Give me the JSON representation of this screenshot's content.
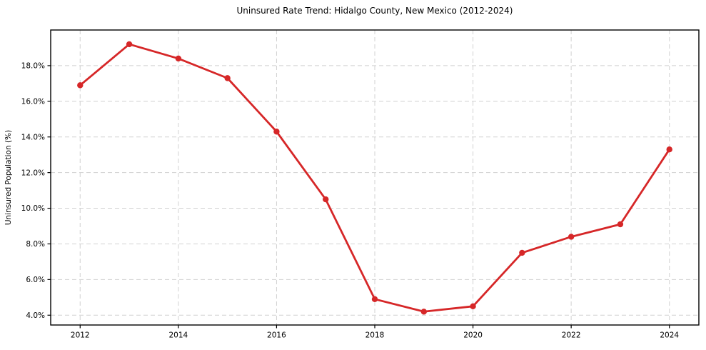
{
  "figure": {
    "background": "#ffffff"
  },
  "chart_data": {
    "type": "line",
    "title": "Uninsured Rate Trend: Hidalgo County, New Mexico (2012-2024)",
    "xlabel": "",
    "ylabel": "Uninsured Population (%)",
    "x": [
      2012,
      2013,
      2014,
      2015,
      2016,
      2017,
      2018,
      2019,
      2020,
      2021,
      2022,
      2023,
      2024
    ],
    "series": [
      {
        "name": "Uninsured Rate",
        "values": [
          16.9,
          19.2,
          18.4,
          17.3,
          14.3,
          10.5,
          4.9,
          4.2,
          4.5,
          7.5,
          8.4,
          9.1,
          13.3
        ],
        "color": "#d62728",
        "marker": "circle",
        "line_width": 2.8,
        "marker_radius": 4.2
      }
    ],
    "xlim": [
      2011.4,
      2024.6
    ],
    "ylim": [
      3.45,
      20.0
    ],
    "x_ticks": [
      {
        "value": 2012,
        "label": "2012"
      },
      {
        "value": 2014,
        "label": "2014"
      },
      {
        "value": 2016,
        "label": "2016"
      },
      {
        "value": 2018,
        "label": "2018"
      },
      {
        "value": 2020,
        "label": "2020"
      },
      {
        "value": 2022,
        "label": "2022"
      },
      {
        "value": 2024,
        "label": "2024"
      }
    ],
    "y_ticks": [
      {
        "value": 4,
        "label": "4.0%"
      },
      {
        "value": 6,
        "label": "6.0%"
      },
      {
        "value": 8,
        "label": "8.0%"
      },
      {
        "value": 10,
        "label": "10.0%"
      },
      {
        "value": 12,
        "label": "12.0%"
      },
      {
        "value": 14,
        "label": "14.0%"
      },
      {
        "value": 16,
        "label": "16.0%"
      },
      {
        "value": 18,
        "label": "18.0%"
      }
    ],
    "grid": {
      "show": true,
      "style": "dashed",
      "color": "#c9c9c9"
    },
    "legend": {
      "show": false
    }
  }
}
